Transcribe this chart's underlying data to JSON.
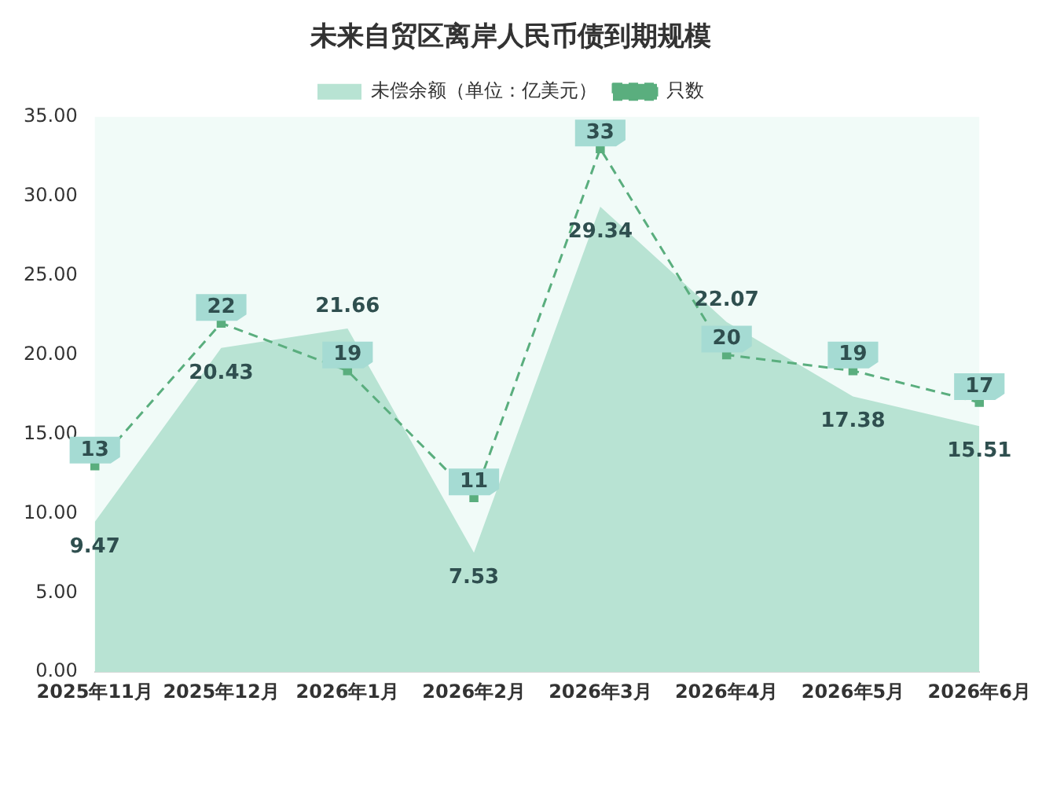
{
  "chart_data": {
    "type": "area",
    "title": "未来自贸区离岸人民币债到期规模",
    "categories": [
      "2025年11月",
      "2025年12月",
      "2026年1月",
      "2026年2月",
      "2026年3月",
      "2026年4月",
      "2026年5月",
      "2026年6月"
    ],
    "series": [
      {
        "name": "未偿余额（单位：亿美元）",
        "color": "#b8e3d3",
        "values": [
          9.47,
          20.43,
          21.66,
          7.53,
          29.34,
          22.07,
          17.38,
          15.51
        ]
      },
      {
        "name": "只数",
        "type": "line",
        "color": "#5aae7e",
        "line_style": "dashed",
        "marker": "square",
        "values": [
          13,
          22,
          19,
          11,
          33,
          20,
          19,
          17
        ]
      }
    ],
    "ylim": [
      0,
      35
    ],
    "yticks": [
      {
        "value": 0,
        "label": "0.00"
      },
      {
        "value": 5,
        "label": "5.00"
      },
      {
        "value": 10,
        "label": "10.00"
      },
      {
        "value": 15,
        "label": "15.00"
      },
      {
        "value": 20,
        "label": "20.00"
      },
      {
        "value": 25,
        "label": "25.00"
      },
      {
        "value": 30,
        "label": "30.00"
      },
      {
        "value": 35,
        "label": "35.00"
      }
    ],
    "grid": false,
    "legend": "top",
    "data_labels": true
  }
}
